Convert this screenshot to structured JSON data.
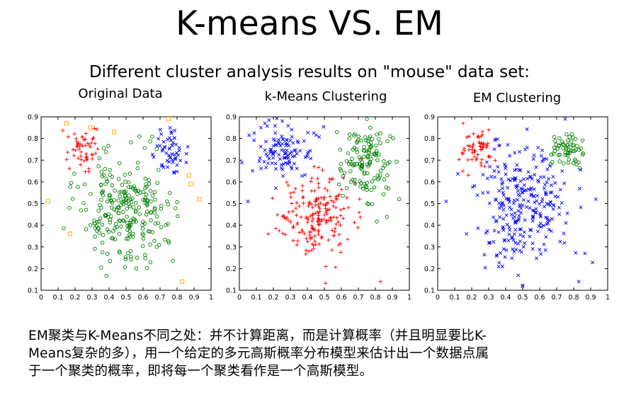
{
  "slide": {
    "title": "K-means VS. EM",
    "subtitle": "Different cluster analysis results on \"mouse\" data set:",
    "note": [
      "EM聚类与K-Means不同之处：并不计算距离，而是计算概率（并且明显要比K-",
      "Means复杂的多），用一个给定的多元高斯概率分布模型来估计出一个数据点属",
      "于一个聚类的概率，即将每一个聚类看作是一个高斯模型。"
    ]
  },
  "colors": {
    "red": "#ff0000",
    "green": "#008000",
    "blue": "#0000ff",
    "orange": "#ffa500"
  },
  "chart_data": [
    {
      "type": "scatter",
      "title": "Original Data",
      "xlim": [
        0,
        1
      ],
      "ylim": [
        0.1,
        0.9
      ],
      "xticks": [
        "0",
        "0.1",
        "0.2",
        "0.3",
        "0.4",
        "0.5",
        "0.6",
        "0.7",
        "0.8",
        "0.9",
        "1"
      ],
      "yticks": [
        "0.1",
        "0.2",
        "0.3",
        "0.4",
        "0.5",
        "0.6",
        "0.7",
        "0.8",
        "0.9"
      ],
      "grid": false,
      "series": [
        {
          "color": "red",
          "marker": "+",
          "cluster": {
            "center": [
              0.24,
              0.75
            ],
            "spread": [
              0.05,
              0.045
            ],
            "count": 55
          }
        },
        {
          "color": "blue",
          "marker": "x",
          "cluster": {
            "center": [
              0.76,
              0.74
            ],
            "spread": [
              0.05,
              0.045
            ],
            "count": 55
          }
        },
        {
          "color": "green",
          "marker": "o",
          "cluster": {
            "center": [
              0.5,
              0.48
            ],
            "spread": [
              0.13,
              0.12
            ],
            "count": 260
          }
        },
        {
          "color": "orange",
          "marker": "s",
          "points": [
            [
              0.15,
              0.87
            ],
            [
              0.29,
              0.85
            ],
            [
              0.43,
              0.83
            ],
            [
              0.75,
              0.89
            ],
            [
              0.87,
              0.63
            ],
            [
              0.88,
              0.59
            ],
            [
              0.93,
              0.52
            ],
            [
              0.04,
              0.51
            ],
            [
              0.17,
              0.36
            ],
            [
              0.83,
              0.14
            ]
          ]
        }
      ]
    },
    {
      "type": "scatter",
      "title": "k-Means Clustering",
      "xlim": [
        0,
        1
      ],
      "ylim": [
        0.1,
        0.9
      ],
      "xticks": [
        "0",
        "0.1",
        "0.2",
        "0.3",
        "0.4",
        "0.5",
        "0.6",
        "0.7",
        "0.8",
        "0.9",
        "1"
      ],
      "yticks": [
        "0.1",
        "0.2",
        "0.3",
        "0.4",
        "0.5",
        "0.6",
        "0.7",
        "0.8",
        "0.9"
      ],
      "grid": false,
      "series": [
        {
          "color": "blue",
          "marker": "x",
          "cluster": {
            "center": [
              0.26,
              0.74
            ],
            "spread": [
              0.08,
              0.07
            ],
            "count": 110
          }
        },
        {
          "color": "green",
          "marker": "o",
          "cluster": {
            "center": [
              0.74,
              0.69
            ],
            "spread": [
              0.07,
              0.09
            ],
            "count": 130
          }
        },
        {
          "color": "red",
          "marker": "+",
          "cluster": {
            "center": [
              0.47,
              0.44
            ],
            "spread": [
              0.11,
              0.1
            ],
            "count": 200
          }
        },
        {
          "color": "blue",
          "marker": "x",
          "points": [
            [
              0.05,
              0.51
            ],
            [
              0.15,
              0.87
            ]
          ]
        },
        {
          "color": "green",
          "marker": "o",
          "points": [
            [
              0.94,
              0.52
            ],
            [
              0.75,
              0.89
            ],
            [
              0.87,
              0.63
            ]
          ]
        },
        {
          "color": "red",
          "marker": "+",
          "points": [
            [
              0.17,
              0.36
            ],
            [
              0.83,
              0.14
            ]
          ]
        }
      ]
    },
    {
      "type": "scatter",
      "title": "EM Clustering",
      "xlim": [
        0,
        1
      ],
      "ylim": [
        0.1,
        0.9
      ],
      "xticks": [
        "0",
        "0.1",
        "0.2",
        "0.3",
        "0.4",
        "0.5",
        "0.6",
        "0.7",
        "0.8",
        "0.9",
        "1"
      ],
      "yticks": [
        "0.1",
        "0.2",
        "0.3",
        "0.4",
        "0.5",
        "0.6",
        "0.7",
        "0.8",
        "0.9"
      ],
      "grid": false,
      "series": [
        {
          "color": "red",
          "marker": "+",
          "cluster": {
            "center": [
              0.24,
              0.75
            ],
            "spread": [
              0.05,
              0.045
            ],
            "count": 60
          }
        },
        {
          "color": "green",
          "marker": "o",
          "cluster": {
            "center": [
              0.76,
              0.74
            ],
            "spread": [
              0.05,
              0.045
            ],
            "count": 60
          }
        },
        {
          "color": "blue",
          "marker": "x",
          "cluster": {
            "center": [
              0.5,
              0.5
            ],
            "spread": [
              0.13,
              0.13
            ],
            "count": 280
          }
        },
        {
          "color": "blue",
          "marker": "x",
          "points": [
            [
              0.05,
              0.51
            ],
            [
              0.17,
              0.36
            ],
            [
              0.83,
              0.14
            ],
            [
              0.93,
              0.52
            ],
            [
              0.75,
              0.89
            ]
          ]
        },
        {
          "color": "red",
          "marker": "+",
          "points": [
            [
              0.15,
              0.87
            ]
          ]
        }
      ]
    }
  ]
}
